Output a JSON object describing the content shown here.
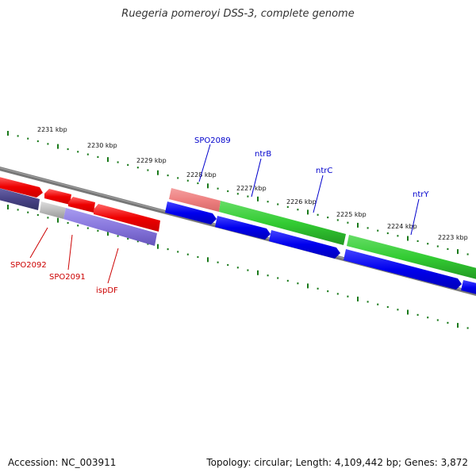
{
  "title": "Ruegeria pomeroyi DSS-3, complete genome",
  "footer": {
    "accession": "Accession: NC_003911",
    "summary": "Topology: circular; Length: 4,109,442 bp; Genes: 3,872"
  },
  "colors": {
    "backbone": "#808080",
    "tick": "#1a7a1a",
    "label_forward": "#0000cc",
    "label_reverse": "#cc0000"
  },
  "ruler_labels": [
    "2231 kbp",
    "2230 kbp",
    "2229 kbp",
    "2228 kbp",
    "2227 kbp",
    "2226 kbp",
    "2225 kbp",
    "2224 kbp",
    "2223 kbp"
  ],
  "forward_genes": [
    {
      "label": "SPO2089",
      "color": "#f08080"
    },
    {
      "label": "ntrB",
      "color": "#33cc33"
    },
    {
      "label": "ntrC",
      "color": "#33cc33"
    },
    {
      "label": "ntrY",
      "color": "#33cc33"
    }
  ],
  "reverse_genes": [
    {
      "label": "SPO2092",
      "color": "#bbbbbb"
    },
    {
      "label": "SPO2091",
      "color": "#8877dd"
    },
    {
      "label": "ispDF",
      "color": "#8877dd"
    }
  ]
}
